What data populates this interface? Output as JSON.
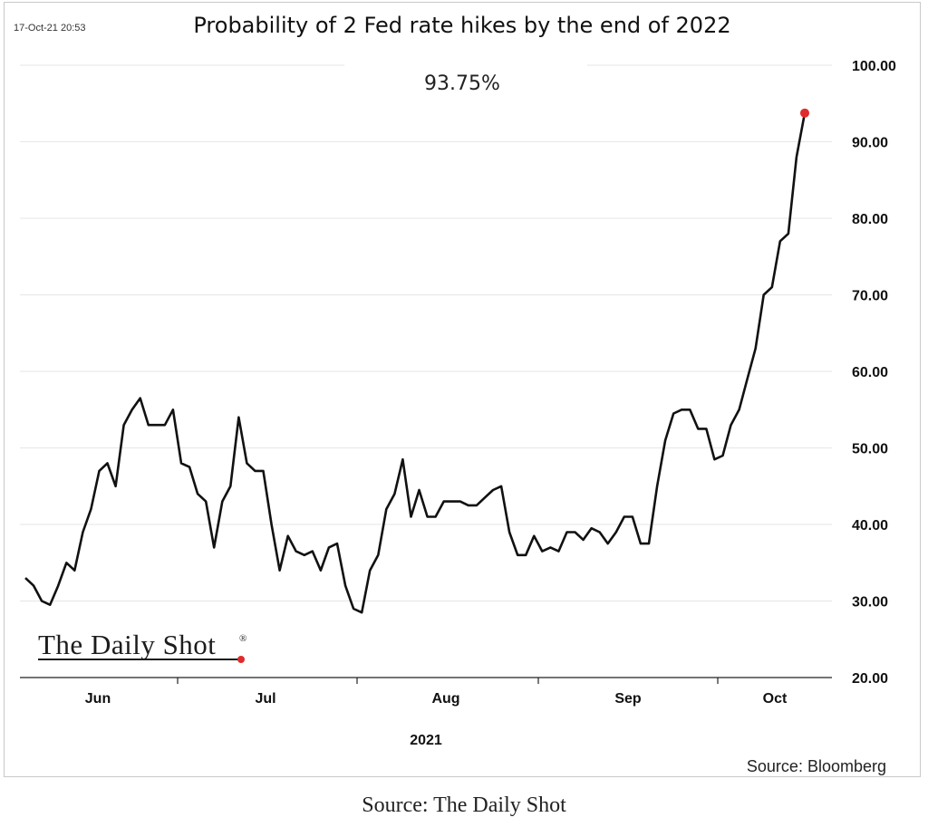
{
  "timestamp": "17-Oct-21 20:53",
  "source_inner": "Source: Bloomberg",
  "caption": "Source: The Daily Shot",
  "logo": {
    "text": "The Daily Shot",
    "reg_mark": "®"
  },
  "colors": {
    "line": "#111111",
    "marker": "#e02b2b",
    "grid": "#e6e6e6"
  },
  "chart_data": {
    "type": "line",
    "title": "Probability of 2 Fed rate hikes by the end of 2022",
    "callout": "93.75%",
    "xlabel": "2021",
    "ylabel": "",
    "ylim": [
      20,
      100
    ],
    "y_ticks": [
      "100.00",
      "90.00",
      "80.00",
      "70.00",
      "60.00",
      "50.00",
      "40.00",
      "30.00",
      "20.00"
    ],
    "y_axis_side": "right",
    "x_ticks": [
      "Jun",
      "Jul",
      "Aug",
      "Sep",
      "Oct"
    ],
    "grid": true,
    "series": [
      {
        "values": [
          33,
          32,
          30,
          29.5,
          32,
          35,
          34,
          39,
          42,
          47,
          48,
          45,
          53,
          55,
          56.5,
          53,
          53,
          53,
          55,
          48,
          47.5,
          44,
          43,
          37,
          43,
          45,
          54,
          48,
          47,
          47,
          40,
          34,
          38.5,
          36.5,
          36,
          36.5,
          34,
          37,
          37.5,
          32,
          29,
          28.5,
          34,
          36,
          42,
          44,
          48.5,
          41,
          44.5,
          41,
          41,
          43,
          43,
          43,
          42.5,
          42.5,
          43.5,
          44.5,
          45,
          39,
          36,
          36,
          38.5,
          36.5,
          37,
          36.5,
          39,
          39,
          38,
          39.5,
          39,
          37.5,
          39,
          41,
          41,
          37.5,
          37.5,
          45,
          51,
          54.5,
          55,
          55,
          52.5,
          52.5,
          48.5,
          49,
          53,
          55,
          59,
          63,
          70,
          71,
          77,
          78,
          88,
          93.75
        ]
      }
    ],
    "last_point": {
      "value": 93.75,
      "marker": "red dot"
    }
  }
}
